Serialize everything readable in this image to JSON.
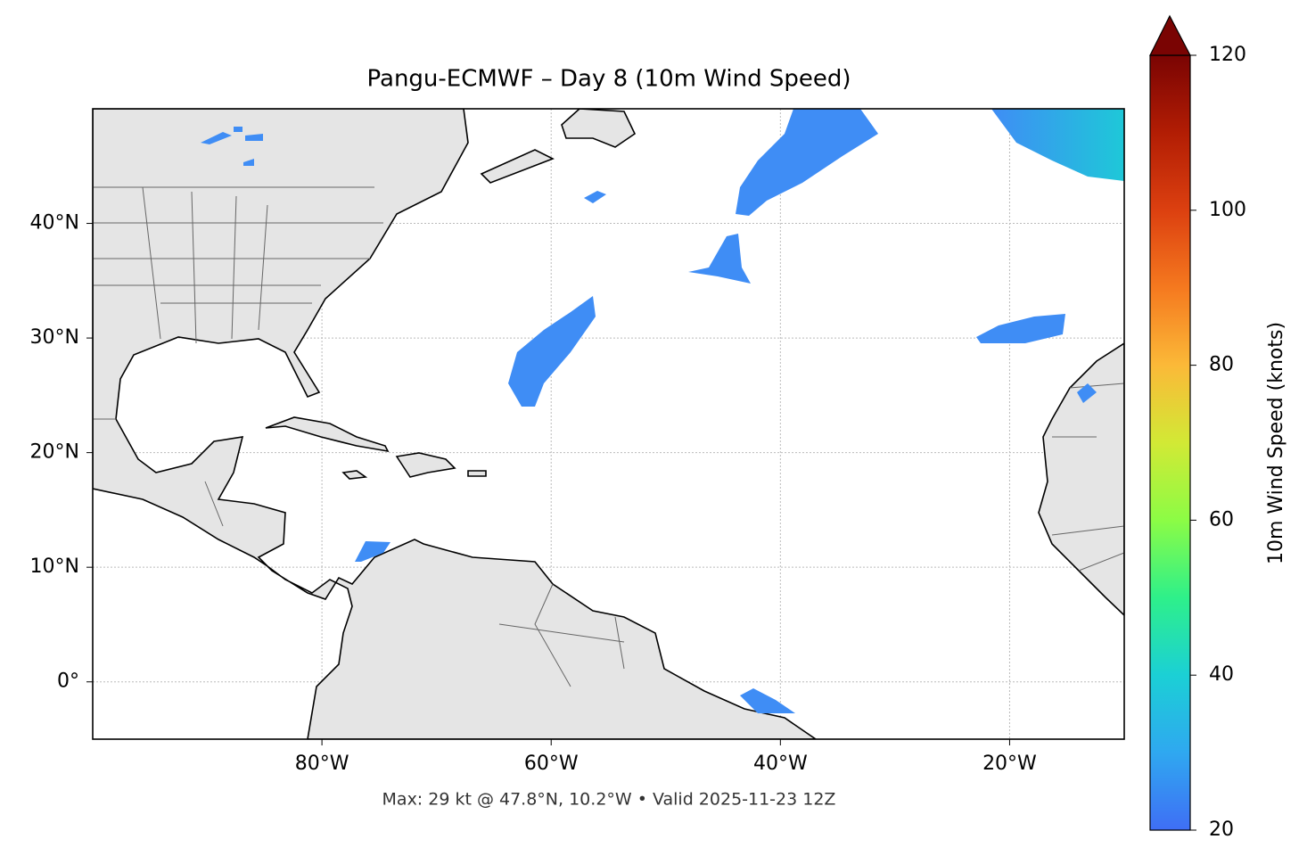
{
  "chart_data": {
    "type": "map",
    "title": "Pangu-ECMWF – Day 8 (10m Wind Speed)",
    "footnote": "Max: 29 kt @ 47.8°N, 10.2°W • Valid 2025-11-23 12Z",
    "xlim": [
      -100,
      -10
    ],
    "ylim": [
      -5,
      50
    ],
    "xticks": [
      {
        "value": -80,
        "label": "80°W"
      },
      {
        "value": -60,
        "label": "60°W"
      },
      {
        "value": -40,
        "label": "40°W"
      },
      {
        "value": -20,
        "label": "20°W"
      }
    ],
    "yticks": [
      {
        "value": 0,
        "label": "0°"
      },
      {
        "value": 10,
        "label": "10°N"
      },
      {
        "value": 20,
        "label": "20°N"
      },
      {
        "value": 30,
        "label": "30°N"
      },
      {
        "value": 40,
        "label": "40°N"
      }
    ],
    "grid": true,
    "colorbar": {
      "label": "10m Wind Speed (knots)",
      "lim": [
        20,
        120
      ],
      "ticks": [
        20,
        40,
        60,
        80,
        100,
        120
      ]
    }
  }
}
